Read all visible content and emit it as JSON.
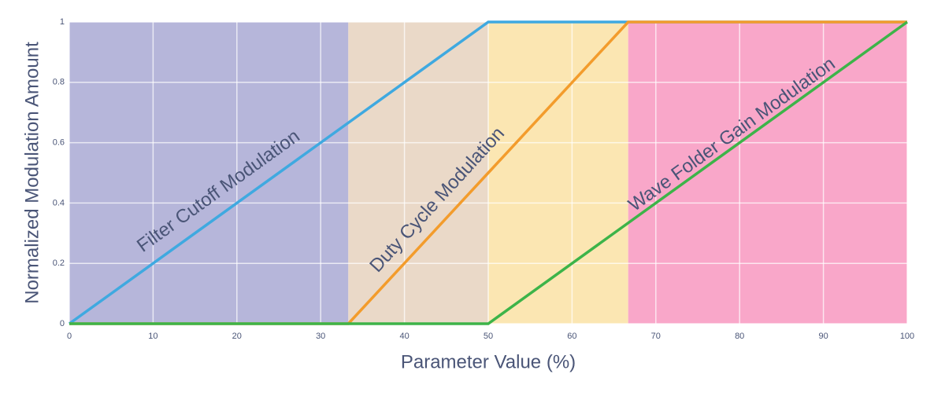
{
  "chart_data": {
    "type": "line",
    "x_label": "Parameter Value (%)",
    "y_label": "Normalized Modulation Amount",
    "xlim": [
      0,
      100
    ],
    "ylim": [
      0,
      1
    ],
    "xticks": [
      0,
      10,
      20,
      30,
      40,
      50,
      60,
      70,
      80,
      90,
      100
    ],
    "yticks": [
      0,
      0.2,
      0.4,
      0.6,
      0.8,
      1
    ],
    "grid": true,
    "bands": [
      {
        "x0": 0,
        "x1": 33.3,
        "color": "#b6b6da"
      },
      {
        "x0": 33.3,
        "x1": 50,
        "color": "#ead9c8"
      },
      {
        "x0": 50,
        "x1": 66.7,
        "color": "#fbe6b2"
      },
      {
        "x0": 66.7,
        "x1": 100,
        "color": "#f9a7c9"
      }
    ],
    "x": [
      0,
      33.3,
      50,
      66.7,
      100
    ],
    "series": [
      {
        "color": "#3fa9e0",
        "values": [
          0,
          0.666,
          1,
          1,
          1
        ]
      },
      {
        "color": "#f39c2c",
        "values": [
          0,
          0,
          0.5,
          1,
          1
        ]
      },
      {
        "color": "#3db449",
        "values": [
          0,
          0,
          0,
          0.334,
          1
        ]
      }
    ],
    "annotations": [
      "Filter Cutoff Modulation",
      "Duty Cycle Modulation",
      "Wave Folder Gain Modulation"
    ]
  }
}
